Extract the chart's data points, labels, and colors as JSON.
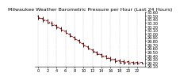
{
  "title": "Milwaukee Weather Barometric Pressure per Hour (Last 24 Hours)",
  "hours": [
    0,
    1,
    2,
    3,
    4,
    5,
    6,
    7,
    8,
    9,
    10,
    11,
    12,
    13,
    14,
    15,
    16,
    17,
    18,
    19,
    20,
    21,
    22,
    23
  ],
  "pressure": [
    30.45,
    30.4,
    30.35,
    30.28,
    30.21,
    30.13,
    30.05,
    29.97,
    29.88,
    29.79,
    29.7,
    29.62,
    29.54,
    29.47,
    29.41,
    29.36,
    29.31,
    29.27,
    29.24,
    29.22,
    29.21,
    29.2,
    29.2,
    29.2
  ],
  "high": [
    30.52,
    30.47,
    30.41,
    30.34,
    30.27,
    30.19,
    30.11,
    30.03,
    29.94,
    29.85,
    29.76,
    29.68,
    29.6,
    29.53,
    29.47,
    29.42,
    29.37,
    29.33,
    29.3,
    29.28,
    29.27,
    29.25,
    29.24,
    29.23
  ],
  "low": [
    30.39,
    30.33,
    30.28,
    30.21,
    30.14,
    30.07,
    29.99,
    29.91,
    29.82,
    29.73,
    29.64,
    29.56,
    29.48,
    29.41,
    29.35,
    29.3,
    29.25,
    29.21,
    29.18,
    29.16,
    29.15,
    29.15,
    29.16,
    29.17
  ],
  "line_color": "#ff0000",
  "tick_color": "#000000",
  "bg_color": "#ffffff",
  "ylim_min": 29.1,
  "ylim_max": 30.6,
  "y_ticks": [
    29.1,
    29.2,
    29.3,
    29.4,
    29.5,
    29.6,
    29.7,
    29.8,
    29.9,
    30.0,
    30.1,
    30.2,
    30.3,
    30.4,
    30.5,
    30.6
  ],
  "x_ticks": [
    0,
    2,
    4,
    6,
    8,
    10,
    12,
    14,
    16,
    18,
    20,
    22
  ],
  "title_fontsize": 4.5,
  "tick_fontsize": 3.5,
  "grid_color": "#b0b0b0"
}
